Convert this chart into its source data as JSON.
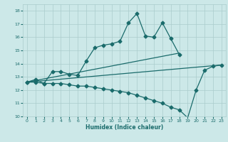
{
  "xlabel": "Humidex (Indice chaleur)",
  "xlim": [
    -0.5,
    23.5
  ],
  "ylim": [
    10,
    18.5
  ],
  "xticks": [
    0,
    1,
    2,
    3,
    4,
    5,
    6,
    7,
    8,
    9,
    10,
    11,
    12,
    13,
    14,
    15,
    16,
    17,
    18,
    19,
    20,
    21,
    22,
    23
  ],
  "yticks": [
    10,
    11,
    12,
    13,
    14,
    15,
    16,
    17,
    18
  ],
  "bg_color": "#cce8e8",
  "grid_color": "#aacccc",
  "line_color": "#1a6b6b",
  "lines": [
    {
      "x": [
        0,
        1,
        2,
        3,
        4,
        5,
        6,
        7,
        8,
        9,
        10,
        11,
        12,
        13,
        14,
        15,
        16,
        17,
        18
      ],
      "y": [
        12.6,
        12.8,
        12.5,
        13.4,
        13.4,
        13.2,
        13.1,
        14.2,
        15.2,
        15.4,
        15.5,
        15.7,
        17.1,
        17.8,
        16.1,
        16.0,
        17.1,
        15.9,
        14.7
      ],
      "marker": "D",
      "markersize": 2.5,
      "linewidth": 0.9
    },
    {
      "x": [
        0,
        18
      ],
      "y": [
        12.6,
        14.8
      ],
      "marker": null,
      "linewidth": 0.9
    },
    {
      "x": [
        0,
        23
      ],
      "y": [
        12.6,
        13.9
      ],
      "marker": null,
      "linewidth": 0.9
    },
    {
      "x": [
        0,
        1,
        2,
        3,
        4,
        5,
        6,
        7,
        8,
        9,
        10,
        11,
        12,
        13,
        14,
        15,
        16,
        17,
        18,
        19,
        20,
        21,
        22,
        23
      ],
      "y": [
        12.6,
        12.6,
        12.5,
        12.5,
        12.5,
        12.4,
        12.3,
        12.3,
        12.2,
        12.1,
        12.0,
        11.9,
        11.8,
        11.6,
        11.4,
        11.2,
        11.0,
        10.7,
        10.5,
        9.9,
        12.0,
        13.5,
        13.8,
        13.9
      ],
      "marker": "D",
      "markersize": 2.5,
      "linewidth": 0.9
    }
  ]
}
